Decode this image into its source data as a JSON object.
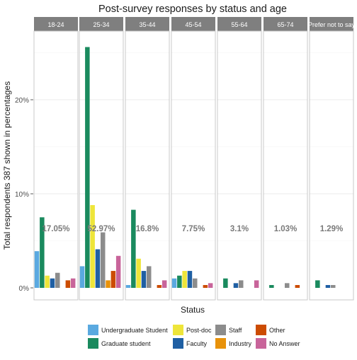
{
  "chart_data": {
    "type": "bar",
    "title": "Post-survey responses by status and age",
    "xlabel": "Status",
    "ylabel": "Total respondents 387 shown in percentages",
    "ylim": [
      0,
      27
    ],
    "yticks": [
      0,
      10,
      20
    ],
    "ytick_labels": [
      "0%",
      "10%",
      "20%"
    ],
    "grid": true,
    "legend_position": "bottom",
    "categories": [
      "Undergraduate Student",
      "Graduate student",
      "Post-doc",
      "Faculty",
      "Staff",
      "Industry",
      "Other",
      "No Answer"
    ],
    "colors": [
      "#5aa9e0",
      "#1a8a5e",
      "#eee53a",
      "#1f5fa3",
      "#8c8c8c",
      "#e8920a",
      "#cc4c02",
      "#c8649a"
    ],
    "legend_order": [
      0,
      2,
      4,
      6,
      1,
      3,
      5,
      7
    ],
    "panels": [
      {
        "label": "18-24",
        "total": "17.05%",
        "values": [
          3.9,
          7.5,
          1.3,
          1.0,
          1.6,
          0.0,
          0.8,
          1.0
        ]
      },
      {
        "label": "25-34",
        "total": "52.97%",
        "values": [
          2.3,
          25.6,
          8.8,
          4.1,
          5.9,
          0.8,
          1.8,
          3.4
        ]
      },
      {
        "label": "35-44",
        "total": "16.8%",
        "values": [
          0.3,
          8.3,
          3.1,
          1.8,
          2.3,
          0.0,
          0.3,
          0.8
        ]
      },
      {
        "label": "45-54",
        "total": "7.75%",
        "values": [
          1.0,
          1.3,
          1.8,
          1.8,
          1.0,
          0.0,
          0.3,
          0.5
        ]
      },
      {
        "label": "55-64",
        "total": "3.1%",
        "values": [
          0.0,
          1.0,
          0.0,
          0.5,
          0.8,
          0.0,
          0.0,
          0.8
        ]
      },
      {
        "label": "65-74",
        "total": "1.03%",
        "values": [
          0.0,
          0.3,
          0.0,
          0.0,
          0.5,
          0.0,
          0.3,
          0.0
        ]
      },
      {
        "label": "Prefer not to say",
        "total": "1.29%",
        "values": [
          0.0,
          0.8,
          0.0,
          0.3,
          0.3,
          0.0,
          0.0,
          0.0
        ]
      }
    ]
  }
}
